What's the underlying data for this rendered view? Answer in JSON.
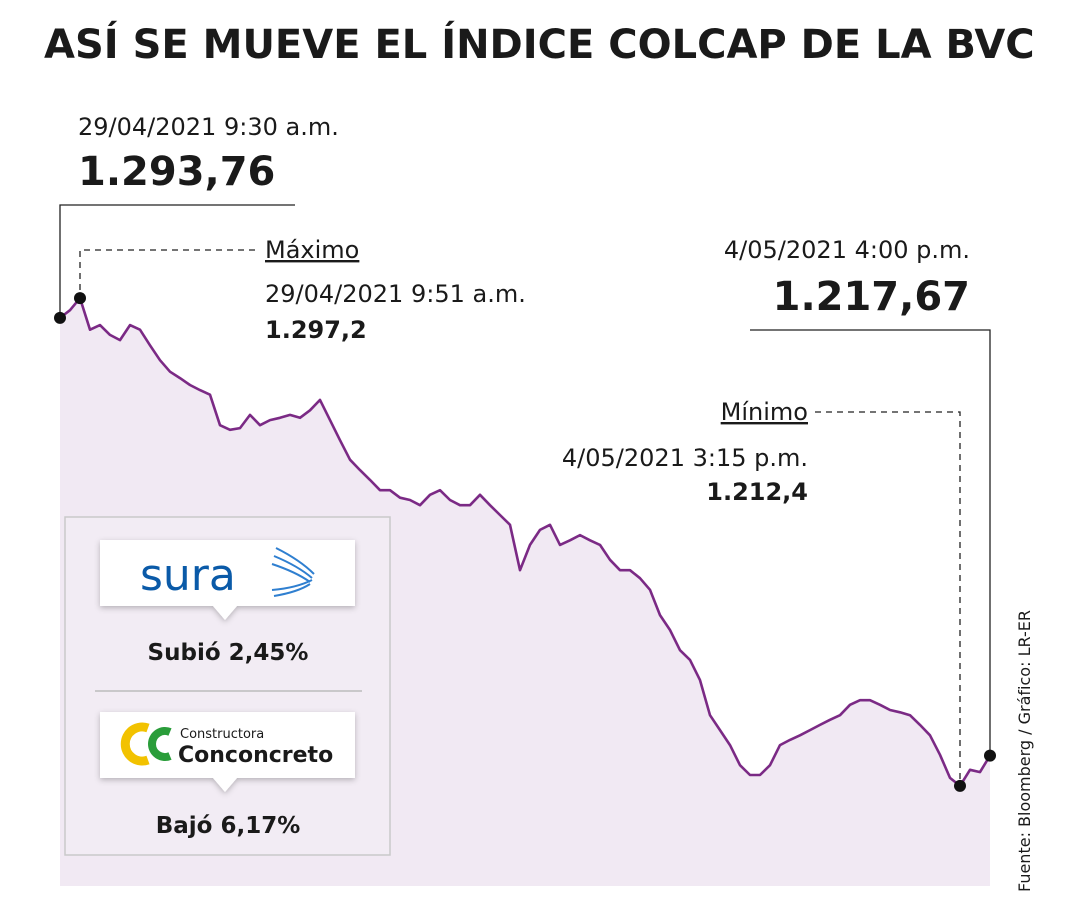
{
  "chart_data": {
    "type": "line",
    "title": "ASÍ SE MUEVE EL ÍNDICE COLCAP DE LA BVC",
    "source": "Fuente: Bloomberg / Gráfico: LR-ER",
    "color": "#7b2a85",
    "area_color": "#f1e9f3",
    "ylim": [
      1195,
      1300
    ],
    "values": [
      1293.76,
      1295.1,
      1297.2,
      1291.7,
      1292.5,
      1290.8,
      1289.9,
      1292.5,
      1291.7,
      1289.0,
      1286.4,
      1284.4,
      1283.3,
      1282.1,
      1281.2,
      1280.4,
      1275.1,
      1274.3,
      1274.6,
      1276.9,
      1275.1,
      1276.0,
      1276.4,
      1276.9,
      1276.4,
      1277.7,
      1279.5,
      1276.0,
      1272.5,
      1269.1,
      1267.3,
      1265.6,
      1263.8,
      1263.8,
      1262.5,
      1262.1,
      1261.2,
      1263.0,
      1263.8,
      1262.1,
      1261.2,
      1261.2,
      1263.0,
      1261.2,
      1259.5,
      1257.8,
      1249.9,
      1254.3,
      1256.9,
      1257.8,
      1254.3,
      1255.1,
      1256.0,
      1255.1,
      1254.3,
      1251.7,
      1249.9,
      1249.9,
      1248.5,
      1246.5,
      1242.1,
      1239.5,
      1236.0,
      1234.3,
      1230.8,
      1224.7,
      1222.1,
      1219.5,
      1216.0,
      1214.3,
      1214.3,
      1216.0,
      1219.5,
      1220.4,
      1221.2,
      1222.1,
      1223.0,
      1223.9,
      1224.7,
      1226.5,
      1227.3,
      1227.3,
      1226.5,
      1225.6,
      1225.2,
      1224.7,
      1223.0,
      1221.2,
      1217.8,
      1213.8,
      1212.4,
      1215.2,
      1214.8,
      1217.67
    ],
    "callouts": [
      {
        "time": "29/04/2021 9:30 a.m.",
        "value": 1293.76,
        "value_label": "1.293,76"
      },
      {
        "heading": "Máximo",
        "time": "29/04/2021 9:51 a.m.",
        "value": 1297.2,
        "value_label": "1.297,2"
      },
      {
        "time": "4/05/2021 4:00 p.m.",
        "value": 1217.67,
        "value_label": "1.217,67"
      },
      {
        "heading": "Mínimo",
        "time": "4/05/2021 3:15 p.m.",
        "value": 1212.4,
        "value_label": "1.212,4"
      }
    ],
    "stocks": [
      {
        "logo": "sura",
        "change": "Subió 2,45%"
      },
      {
        "logo_small": "Constructora",
        "logo": "Conconcreto",
        "change": "Bajó 6,17%"
      }
    ]
  }
}
